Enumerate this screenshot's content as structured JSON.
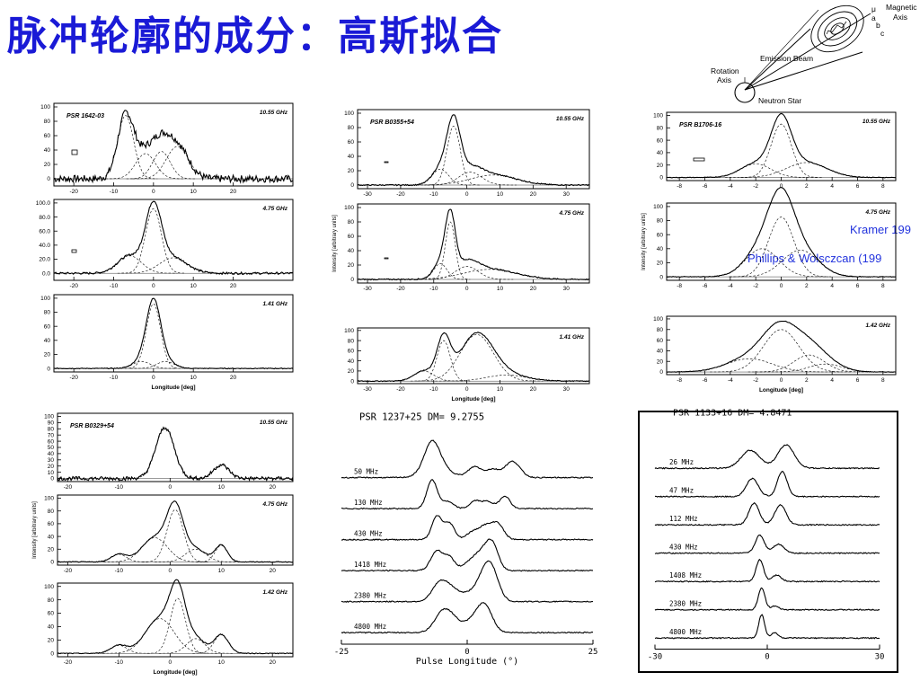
{
  "slide": {
    "title": "脉冲轮廓的成分：高斯拟合",
    "citations": [
      "Kramer 199",
      "Phillips & Wolsczcan (199"
    ]
  },
  "diagram": {
    "labels": {
      "mu": "μ",
      "a": "a",
      "b": "b",
      "c": "c",
      "magnetic_axis": [
        "Magnetic",
        "Axis"
      ],
      "emission_beam": "Emission Beam",
      "rotation_axis": [
        "Rotation",
        "Axis"
      ],
      "neutron_star": "Neutron Star"
    }
  },
  "chart_data": [
    {
      "type": "line",
      "panel": "PSR 1642-03 10.55 GHz",
      "title": "PSR 1642-03",
      "frequency": "10.55 GHz",
      "xlim": [
        -25,
        35
      ],
      "ylim": [
        -10,
        105
      ],
      "xticks": [
        -20,
        -10,
        0,
        10,
        20
      ],
      "yticks": [
        "0",
        "20",
        "40",
        "60",
        "80",
        "100"
      ],
      "components": [
        {
          "mu": -7,
          "sigma": 2.0,
          "amp": 88
        },
        {
          "mu": -2,
          "sigma": 2.5,
          "amp": 35
        },
        {
          "mu": 2,
          "sigma": 2.2,
          "amp": 38
        },
        {
          "mu": 6,
          "sigma": 2.8,
          "amp": 45
        }
      ],
      "noise": 5,
      "xlabel": ""
    },
    {
      "type": "line",
      "panel": "PSR 1642-03 4.75 GHz",
      "title": "",
      "frequency": "4.75 GHz",
      "xlim": [
        -25,
        35
      ],
      "ylim": [
        -10,
        105
      ],
      "xticks": [
        -20,
        -10,
        0,
        10,
        20
      ],
      "yticks": [
        "0.0",
        "20.0",
        "40.0",
        "60.0",
        "80.0",
        "100.0"
      ],
      "components": [
        {
          "mu": -6,
          "sigma": 3.0,
          "amp": 25
        },
        {
          "mu": 0,
          "sigma": 2.0,
          "amp": 92
        },
        {
          "mu": 5,
          "sigma": 3.5,
          "amp": 22
        }
      ],
      "noise": 1.5,
      "xlabel": ""
    },
    {
      "type": "line",
      "panel": "PSR 1642-03 1.41 GHz",
      "title": "",
      "frequency": "1.41 GHz",
      "xlim": [
        -25,
        35
      ],
      "ylim": [
        -5,
        105
      ],
      "xticks": [
        -20,
        -10,
        0,
        10,
        20
      ],
      "yticks": [
        "0",
        "20",
        "40",
        "60",
        "80",
        "100"
      ],
      "components": [
        {
          "mu": -3,
          "sigma": 2.2,
          "amp": 10
        },
        {
          "mu": 0,
          "sigma": 1.8,
          "amp": 92
        },
        {
          "mu": 3,
          "sigma": 2.2,
          "amp": 10
        }
      ],
      "noise": 0.6,
      "xlabel": "Longitude [deg]"
    },
    {
      "type": "line",
      "panel": "PSR B0355+54 10.55 GHz",
      "title": "PSR B0355+54",
      "frequency": "10.55 GHz",
      "xlim": [
        -33,
        37
      ],
      "ylim": [
        -5,
        105
      ],
      "xticks": [
        -30,
        -20,
        -10,
        0,
        10,
        20,
        30
      ],
      "yticks": [
        "0",
        "20",
        "40",
        "60",
        "80",
        "100"
      ],
      "components": [
        {
          "mu": -8,
          "sigma": 2.5,
          "amp": 22
        },
        {
          "mu": -4,
          "sigma": 2.0,
          "amp": 82
        },
        {
          "mu": 1,
          "sigma": 3.5,
          "amp": 18
        },
        {
          "mu": 8,
          "sigma": 7.0,
          "amp": 14
        }
      ],
      "noise": 0.8,
      "xlabel": ""
    },
    {
      "type": "line",
      "panel": "PSR B0355+54 4.75 GHz",
      "title": "",
      "frequency": "4.75 GHz",
      "xlim": [
        -33,
        37
      ],
      "ylim": [
        -5,
        105
      ],
      "xticks": [
        -30,
        -20,
        -10,
        0,
        10,
        20,
        30
      ],
      "yticks": [
        "0",
        "20",
        "40",
        "60",
        "80",
        "100"
      ],
      "components": [
        {
          "mu": -8,
          "sigma": 2.0,
          "amp": 22
        },
        {
          "mu": -5,
          "sigma": 1.5,
          "amp": 80
        },
        {
          "mu": 0,
          "sigma": 3.5,
          "amp": 18
        },
        {
          "mu": 7,
          "sigma": 8.0,
          "amp": 14
        }
      ],
      "noise": 0.8,
      "ylabel": "Intensity [arbitrary units]",
      "xlabel": ""
    },
    {
      "type": "line",
      "panel": "PSR B0355+54 1.41 GHz",
      "title": "",
      "frequency": "1.41 GHz",
      "xlim": [
        -33,
        37
      ],
      "ylim": [
        -5,
        105
      ],
      "xticks": [
        -30,
        -20,
        -10,
        0,
        10,
        20,
        30
      ],
      "yticks": [
        "0",
        "20",
        "40",
        "60",
        "80",
        "100"
      ],
      "components": [
        {
          "mu": -13,
          "sigma": 3.0,
          "amp": 20
        },
        {
          "mu": -7,
          "sigma": 2.0,
          "amp": 80
        },
        {
          "mu": 3,
          "sigma": 5.0,
          "amp": 92
        },
        {
          "mu": 12,
          "sigma": 6.0,
          "amp": 12
        }
      ],
      "noise": 0.8,
      "xlabel": "Longitude [deg]"
    },
    {
      "type": "line",
      "panel": "PSR B1706-16 10.55 GHz",
      "title": "PSR B1706-16",
      "frequency": "10.55 GHz",
      "xlim": [
        -9,
        9
      ],
      "ylim": [
        -5,
        105
      ],
      "xticks": [
        -8,
        -6,
        -4,
        -2,
        0,
        2,
        4,
        6,
        8
      ],
      "yticks": [
        "0",
        "20",
        "40",
        "60",
        "80",
        "100"
      ],
      "components": [
        {
          "mu": -2,
          "sigma": 1.2,
          "amp": 22
        },
        {
          "mu": 0,
          "sigma": 0.8,
          "amp": 86
        },
        {
          "mu": 2,
          "sigma": 1.6,
          "amp": 24
        }
      ],
      "noise": 0.5,
      "xlabel": ""
    },
    {
      "type": "line",
      "panel": "PSR B1706-16 4.75 GHz",
      "title": "",
      "frequency": "4.75 GHz",
      "xlim": [
        -9,
        9
      ],
      "ylim": [
        -5,
        105
      ],
      "xticks": [
        -8,
        -6,
        -4,
        -2,
        0,
        2,
        4,
        6,
        8
      ],
      "yticks": [
        "0",
        "20",
        "40",
        "60",
        "80",
        "100"
      ],
      "components": [
        {
          "mu": -1.5,
          "sigma": 1.3,
          "amp": 40
        },
        {
          "mu": 0,
          "sigma": 1.0,
          "amp": 85
        },
        {
          "mu": 1.5,
          "sigma": 1.4,
          "amp": 38
        }
      ],
      "noise": 0.5,
      "ylabel": "Intensity [arbitrary units]",
      "xlabel": ""
    },
    {
      "type": "line",
      "panel": "PSR B1706-16 1.42 GHz",
      "title": "",
      "frequency": "1.42 GHz",
      "xlim": [
        -9,
        9
      ],
      "ylim": [
        -5,
        105
      ],
      "xticks": [
        -8,
        -6,
        -4,
        -2,
        0,
        2,
        4,
        6,
        8
      ],
      "yticks": [
        "0",
        "20",
        "40",
        "60",
        "80",
        "100"
      ],
      "components": [
        {
          "mu": -2.5,
          "sigma": 1.8,
          "amp": 25
        },
        {
          "mu": 0,
          "sigma": 1.4,
          "amp": 80
        },
        {
          "mu": 2.2,
          "sigma": 1.2,
          "amp": 32
        },
        {
          "mu": 3.5,
          "sigma": 1.3,
          "amp": 15
        }
      ],
      "noise": 0.5,
      "xlabel": "Longitude [deg]"
    },
    {
      "type": "line",
      "panel": "PSR B0329+54 10.55 GHz",
      "title": "PSR B0329+54",
      "frequency": "10.55 GHz",
      "xlim": [
        -22,
        24
      ],
      "ylim": [
        -5,
        105
      ],
      "xticks": [
        -20,
        -10,
        0,
        10,
        20
      ],
      "yticks": [
        "0",
        "10",
        "20",
        "30",
        "40",
        "50",
        "60",
        "70",
        "80",
        "90",
        "100"
      ],
      "components": [
        {
          "mu": -1,
          "sigma": 1.8,
          "amp": 82
        },
        {
          "mu": 10,
          "sigma": 1.5,
          "amp": 22
        }
      ],
      "noise": 3,
      "xlabel": ""
    },
    {
      "type": "line",
      "panel": "PSR B0329+54 4.75 GHz",
      "title": "",
      "frequency": "4.75 GHz",
      "xlim": [
        -22,
        24
      ],
      "ylim": [
        -5,
        105
      ],
      "xticks": [
        -20,
        -10,
        0,
        10,
        20
      ],
      "yticks": [
        "0",
        "20",
        "40",
        "60",
        "80",
        "100"
      ],
      "components": [
        {
          "mu": -10,
          "sigma": 1.5,
          "amp": 12
        },
        {
          "mu": -3,
          "sigma": 2.5,
          "amp": 38
        },
        {
          "mu": 1,
          "sigma": 1.6,
          "amp": 82
        },
        {
          "mu": 5,
          "sigma": 2.0,
          "amp": 20
        },
        {
          "mu": 10,
          "sigma": 1.2,
          "amp": 26
        }
      ],
      "noise": 0.6,
      "ylabel": "Intensity [arbitrary units]",
      "xlabel": ""
    },
    {
      "type": "line",
      "panel": "PSR B0329+54 1.42 GHz",
      "title": "",
      "frequency": "1.42 GHz",
      "xlim": [
        -22,
        24
      ],
      "ylim": [
        -5,
        105
      ],
      "xticks": [
        -20,
        -10,
        0,
        10,
        20
      ],
      "yticks": [
        "0",
        "20",
        "40",
        "60",
        "80",
        "100"
      ],
      "components": [
        {
          "mu": -10,
          "sigma": 1.6,
          "amp": 12
        },
        {
          "mu": -2,
          "sigma": 2.8,
          "amp": 52
        },
        {
          "mu": 1.5,
          "sigma": 1.5,
          "amp": 82
        },
        {
          "mu": 5,
          "sigma": 1.8,
          "amp": 22
        },
        {
          "mu": 10,
          "sigma": 1.4,
          "amp": 28
        }
      ],
      "noise": 0.6,
      "xlabel": "Longitude [deg]"
    },
    {
      "type": "line",
      "panel": "PSR 1237+25 multi-frequency",
      "title": "PSR  1237+25      DM=  9.2755",
      "xlabel": "Pulse Longitude (°)",
      "xlim": [
        -25,
        25
      ],
      "xticks": [
        "-25",
        "0",
        "25"
      ],
      "series": [
        {
          "name": "50 MHz",
          "components": [
            {
              "mu": -7,
              "sigma": 1.5,
              "amp": 30
            },
            {
              "mu": -6,
              "sigma": 2.5,
              "amp": 12
            },
            {
              "mu": 1.5,
              "sigma": 1.3,
              "amp": 12
            },
            {
              "mu": 5,
              "sigma": 1.3,
              "amp": 9
            },
            {
              "mu": 9,
              "sigma": 1.5,
              "amp": 18
            }
          ]
        },
        {
          "name": "130 MHz",
          "components": [
            {
              "mu": -7,
              "sigma": 1.0,
              "amp": 32
            },
            {
              "mu": -4,
              "sigma": 1.2,
              "amp": 8
            },
            {
              "mu": 1.5,
              "sigma": 1.0,
              "amp": 8
            },
            {
              "mu": 4,
              "sigma": 1.2,
              "amp": 8
            },
            {
              "mu": 7.5,
              "sigma": 1.0,
              "amp": 14
            }
          ]
        },
        {
          "name": "430 MHz",
          "components": [
            {
              "mu": -6,
              "sigma": 1.0,
              "amp": 26
            },
            {
              "mu": -3.5,
              "sigma": 1.0,
              "amp": 18
            },
            {
              "mu": 1,
              "sigma": 1.2,
              "amp": 8
            },
            {
              "mu": 3.5,
              "sigma": 1.2,
              "amp": 14
            },
            {
              "mu": 6,
              "sigma": 1.2,
              "amp": 18
            }
          ]
        },
        {
          "name": "1418 MHz",
          "components": [
            {
              "mu": -6,
              "sigma": 1.2,
              "amp": 22
            },
            {
              "mu": -3.5,
              "sigma": 1.0,
              "amp": 14
            },
            {
              "mu": 0.5,
              "sigma": 1.5,
              "amp": 8
            },
            {
              "mu": 3,
              "sigma": 1.5,
              "amp": 18
            },
            {
              "mu": 5,
              "sigma": 1.2,
              "amp": 26
            }
          ]
        },
        {
          "name": "2380 MHz",
          "components": [
            {
              "mu": -5.5,
              "sigma": 1.5,
              "amp": 20
            },
            {
              "mu": -3,
              "sigma": 1.5,
              "amp": 12
            },
            {
              "mu": 1,
              "sigma": 1.8,
              "amp": 10
            },
            {
              "mu": 3.5,
              "sigma": 1.4,
              "amp": 22
            },
            {
              "mu": 5,
              "sigma": 1.4,
              "amp": 28
            }
          ]
        },
        {
          "name": "4800 MHz",
          "components": [
            {
              "mu": -5,
              "sigma": 1.6,
              "amp": 20
            },
            {
              "mu": -3,
              "sigma": 1.5,
              "amp": 12
            },
            {
              "mu": 1,
              "sigma": 1.8,
              "amp": 12
            },
            {
              "mu": 3.5,
              "sigma": 1.5,
              "amp": 28
            }
          ]
        }
      ]
    },
    {
      "type": "line",
      "panel": "PSR 1133+16 multi-frequency",
      "title": "PSR  1133+16      DM=  4.8471",
      "xlabel": "",
      "xlim": [
        -30,
        30
      ],
      "xticks": [
        "-30",
        "0",
        "30"
      ],
      "series": [
        {
          "name": "26 MHz",
          "components": [
            {
              "mu": -4.5,
              "sigma": 2.5,
              "amp": 20
            },
            {
              "mu": 5,
              "sigma": 2.2,
              "amp": 26
            }
          ]
        },
        {
          "name": "47 MHz",
          "components": [
            {
              "mu": -4,
              "sigma": 1.6,
              "amp": 20
            },
            {
              "mu": 4,
              "sigma": 1.3,
              "amp": 28
            }
          ]
        },
        {
          "name": "112 MHz",
          "components": [
            {
              "mu": -3.5,
              "sigma": 1.4,
              "amp": 24
            },
            {
              "mu": 3.5,
              "sigma": 1.5,
              "amp": 22
            }
          ]
        },
        {
          "name": "430 MHz",
          "components": [
            {
              "mu": -2,
              "sigma": 1.2,
              "amp": 20
            },
            {
              "mu": 3,
              "sigma": 1.5,
              "amp": 10
            }
          ]
        },
        {
          "name": "1408 MHz",
          "components": [
            {
              "mu": -2,
              "sigma": 1.0,
              "amp": 24
            },
            {
              "mu": 2.5,
              "sigma": 1.2,
              "amp": 7
            }
          ]
        },
        {
          "name": "2380 MHz",
          "components": [
            {
              "mu": -1.5,
              "sigma": 0.9,
              "amp": 24
            },
            {
              "mu": 2,
              "sigma": 1.0,
              "amp": 4
            }
          ]
        },
        {
          "name": "4800 MHz",
          "components": [
            {
              "mu": -1.5,
              "sigma": 0.8,
              "amp": 26
            },
            {
              "mu": 2,
              "sigma": 0.9,
              "amp": 6
            }
          ]
        }
      ]
    }
  ]
}
